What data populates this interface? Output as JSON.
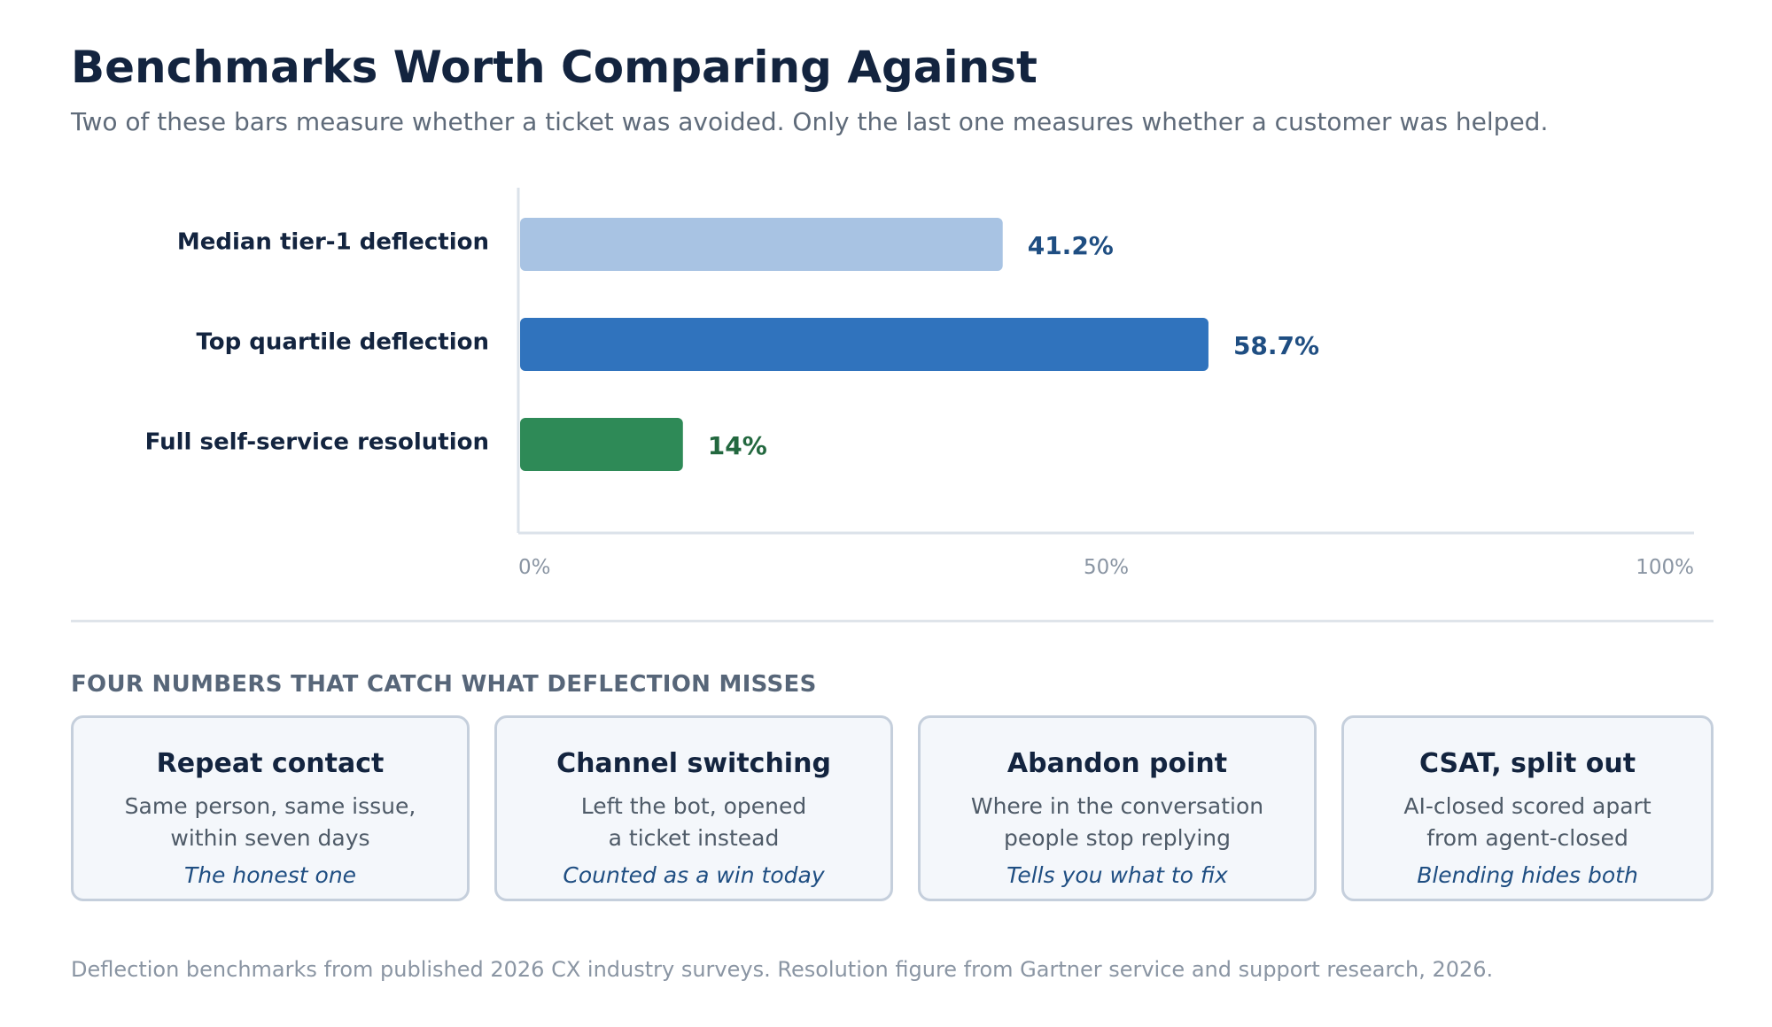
{
  "header": {
    "title": "Benchmarks Worth Comparing Against",
    "subtitle": "Two of these bars measure whether a ticket was avoided. Only the last one measures whether a customer was helped."
  },
  "chart_data": {
    "type": "bar",
    "orientation": "horizontal",
    "categories": [
      "Median tier-1 deflection",
      "Top quartile deflection",
      "Full self-service resolution"
    ],
    "values": [
      41.2,
      58.7,
      14
    ],
    "value_labels": [
      "41.2%",
      "58.7%",
      "14%"
    ],
    "bar_colors": [
      "#a8c3e3",
      "#3073bd",
      "#2e8a57"
    ],
    "label_colors": [
      "#1f4e82",
      "#1f4e82",
      "#23683f"
    ],
    "xlim": [
      0,
      100
    ],
    "xticks": [
      {
        "value": 0,
        "label": "0%"
      },
      {
        "value": 50,
        "label": "50%"
      },
      {
        "value": 100,
        "label": "100%"
      }
    ],
    "title": "",
    "xlabel": "",
    "ylabel": "",
    "grid": false,
    "legend": "none"
  },
  "metrics_section": {
    "heading": "FOUR NUMBERS THAT CATCH WHAT DEFLECTION MISSES",
    "cards": [
      {
        "title": "Repeat contact",
        "desc_line1": "Same person, same issue,",
        "desc_line2": "within seven days",
        "note": "The honest one"
      },
      {
        "title": "Channel switching",
        "desc_line1": "Left the bot, opened",
        "desc_line2": "a ticket instead",
        "note": "Counted as a win today"
      },
      {
        "title": "Abandon point",
        "desc_line1": "Where in the conversation",
        "desc_line2": "people stop replying",
        "note": "Tells you what to fix"
      },
      {
        "title": "CSAT, split out",
        "desc_line1": "AI-closed scored apart",
        "desc_line2": "from agent-closed",
        "note": "Blending hides both"
      }
    ]
  },
  "footnote": "Deflection benchmarks from published 2026 CX industry surveys. Resolution figure from Gartner service and support research, 2026.",
  "colors": {
    "title": "#13243f",
    "subtitle": "#5f6b7a",
    "axis": "#dbe2ea",
    "tick": "#8a95a3",
    "card_bg": "#f4f7fb",
    "card_border": "#c5cfdc",
    "note": "#1f4e82"
  }
}
